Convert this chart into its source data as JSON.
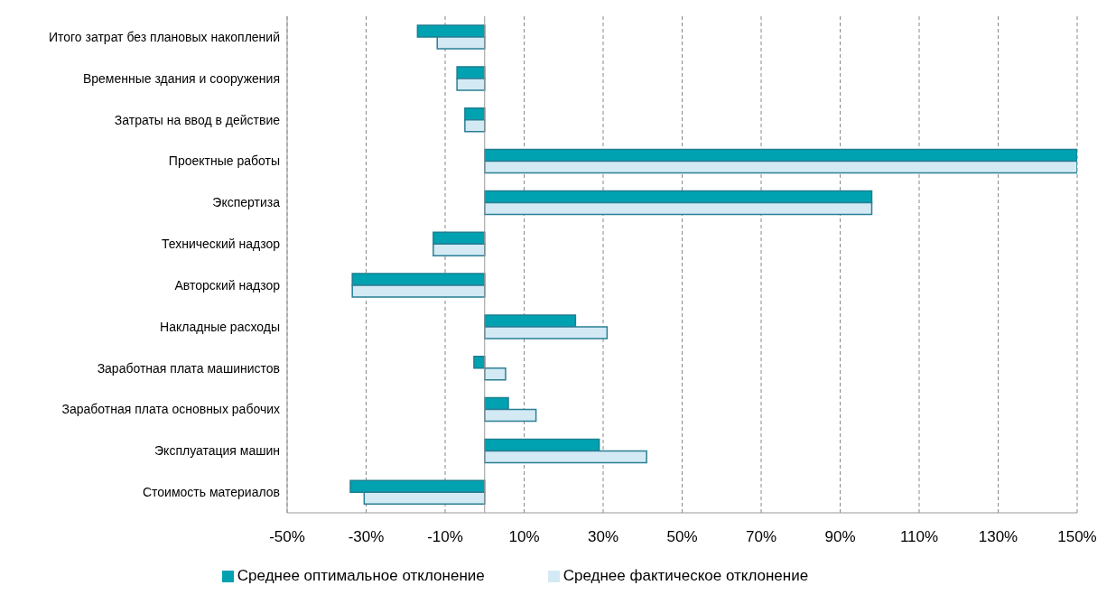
{
  "chart_data": {
    "type": "bar",
    "orientation": "horizontal",
    "categories": [
      "Итого затрат без плановых накоплений",
      "Временные здания и сооружения",
      "Затраты на ввод в действие",
      "Проектные работы",
      "Экспертиза",
      "Технический надзор",
      "Авторский надзор",
      "Накладные расходы",
      "Заработная плата машинистов",
      "Заработная плата основных рабочих",
      "Эксплуатация машин",
      "Стоимость материалов"
    ],
    "series": [
      {
        "name": "Среднее оптимальное отклонение",
        "color": "#00a2b1",
        "values": [
          -17,
          -7,
          -5,
          150,
          98,
          -13,
          -33.5,
          23,
          -2.7,
          6,
          29,
          -34
        ]
      },
      {
        "name": "Среднее фактическое отклонение",
        "color": "#d3eaf4",
        "values": [
          -12,
          -7,
          -5,
          150,
          98,
          -13,
          -33.5,
          31,
          5.3,
          13,
          41,
          -30.5
        ]
      }
    ],
    "xlim": [
      -50,
      150
    ],
    "xticks": [
      {
        "value": -50,
        "label": "-50%"
      },
      {
        "value": -30,
        "label": "-30%"
      },
      {
        "value": -10,
        "label": "-10%"
      },
      {
        "value": 10,
        "label": "10%"
      },
      {
        "value": 30,
        "label": "30%"
      },
      {
        "value": 50,
        "label": "50%"
      },
      {
        "value": 70,
        "label": "70%"
      },
      {
        "value": 90,
        "label": "90%"
      },
      {
        "value": 110,
        "label": "110%"
      },
      {
        "value": 130,
        "label": "130%"
      },
      {
        "value": 150,
        "label": "150%"
      }
    ],
    "grid": "x",
    "legend": "bottom"
  }
}
